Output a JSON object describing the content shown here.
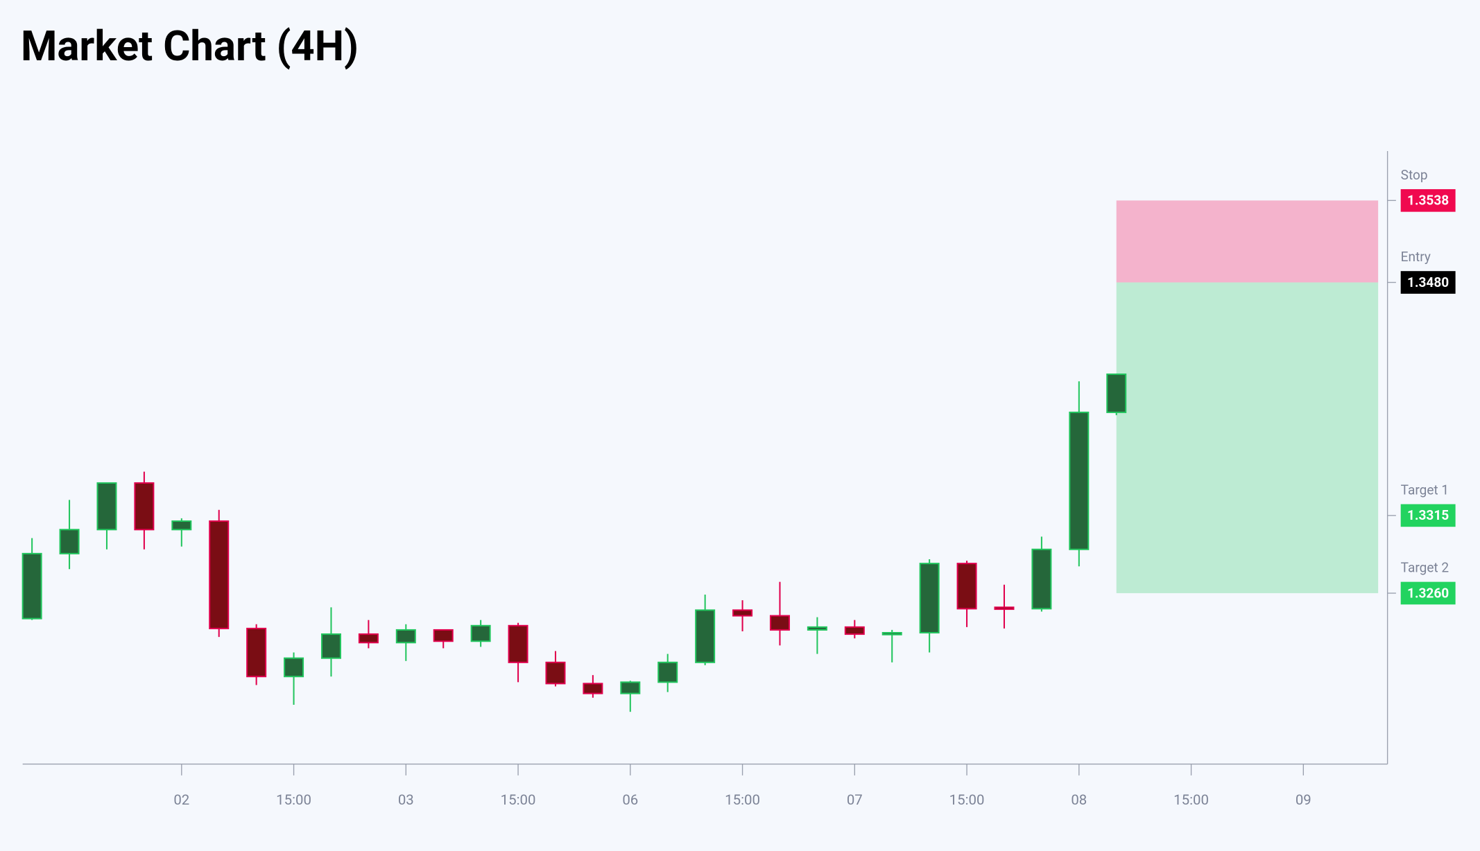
{
  "chart_data": {
    "type": "candlestick",
    "title": "Market Chart (4H)",
    "x": [
      0,
      1,
      2,
      3,
      4,
      5,
      6,
      7,
      8,
      9,
      10,
      11,
      12,
      13,
      14,
      15,
      16,
      17,
      18,
      19,
      20,
      21,
      22,
      23,
      24,
      25,
      26,
      27,
      28,
      29
    ],
    "open": [
      1.3242,
      1.3288,
      1.3305,
      1.3338,
      1.3305,
      1.3311,
      1.3235,
      1.3201,
      1.3214,
      1.3231,
      1.3225,
      1.3234,
      1.3226,
      1.3237,
      1.3211,
      1.3196,
      1.3189,
      1.3197,
      1.3211,
      1.3248,
      1.3244,
      1.3234,
      1.3236,
      1.3231,
      1.3232,
      1.3281,
      1.325,
      1.3249,
      1.3291,
      1.3388
    ],
    "high": [
      1.3299,
      1.3326,
      1.3338,
      1.3346,
      1.3313,
      1.3319,
      1.3238,
      1.3218,
      1.325,
      1.3241,
      1.3238,
      1.3234,
      1.3241,
      1.3239,
      1.3219,
      1.3202,
      1.3198,
      1.3217,
      1.3259,
      1.3255,
      1.3268,
      1.3243,
      1.3241,
      1.3234,
      1.3284,
      1.3283,
      1.3266,
      1.33,
      1.341,
      1.3415
    ],
    "low": [
      1.3241,
      1.3277,
      1.3291,
      1.3291,
      1.3293,
      1.3229,
      1.3195,
      1.3181,
      1.3201,
      1.3221,
      1.3212,
      1.3221,
      1.3222,
      1.3197,
      1.3194,
      1.3186,
      1.3176,
      1.319,
      1.3209,
      1.3233,
      1.3223,
      1.3217,
      1.3228,
      1.3211,
      1.3218,
      1.3236,
      1.3235,
      1.3247,
      1.3279,
      1.3386
    ],
    "close": [
      1.3288,
      1.3305,
      1.3338,
      1.3305,
      1.3311,
      1.3235,
      1.3201,
      1.3214,
      1.3231,
      1.3225,
      1.3234,
      1.3226,
      1.3237,
      1.3211,
      1.3196,
      1.3189,
      1.3197,
      1.3211,
      1.3248,
      1.3244,
      1.3234,
      1.3236,
      1.3231,
      1.3232,
      1.3281,
      1.3249,
      1.3249,
      1.3291,
      1.3388,
      1.3415
    ],
    "up_color": "#22c55e",
    "up_fill": "#25673a",
    "down_color": "#e0004d",
    "down_fill": "#7a0d14",
    "xlim": [
      -0.25,
      36.25
    ],
    "xticks": [
      {
        "value": 4,
        "label": "02"
      },
      {
        "value": 7,
        "label": "15:00"
      },
      {
        "value": 10,
        "label": "03"
      },
      {
        "value": 13,
        "label": "15:00"
      },
      {
        "value": 16,
        "label": "06"
      },
      {
        "value": 19,
        "label": "15:00"
      },
      {
        "value": 22,
        "label": "07"
      },
      {
        "value": 25,
        "label": "15:00"
      },
      {
        "value": 28,
        "label": "08"
      },
      {
        "value": 31,
        "label": "15:00"
      },
      {
        "value": 34,
        "label": "09"
      }
    ],
    "ylim": [
      1.3139,
      1.3573
    ],
    "levels": [
      {
        "name": "Stop",
        "value": 1.3538,
        "label": "1.3538",
        "color": "#f0094f"
      },
      {
        "name": "Entry",
        "value": 1.348,
        "label": "1.3480",
        "color": "#000000"
      },
      {
        "name": "Target 1",
        "value": 1.3315,
        "label": "1.3315",
        "color": "#22d35f"
      },
      {
        "name": "Target 2",
        "value": 1.326,
        "label": "1.3260",
        "color": "#22d35f"
      }
    ],
    "position": {
      "x_start": 29,
      "x_end": 36,
      "risk_color": "#f4b3cc",
      "reward_color": "#bdebd3"
    }
  }
}
